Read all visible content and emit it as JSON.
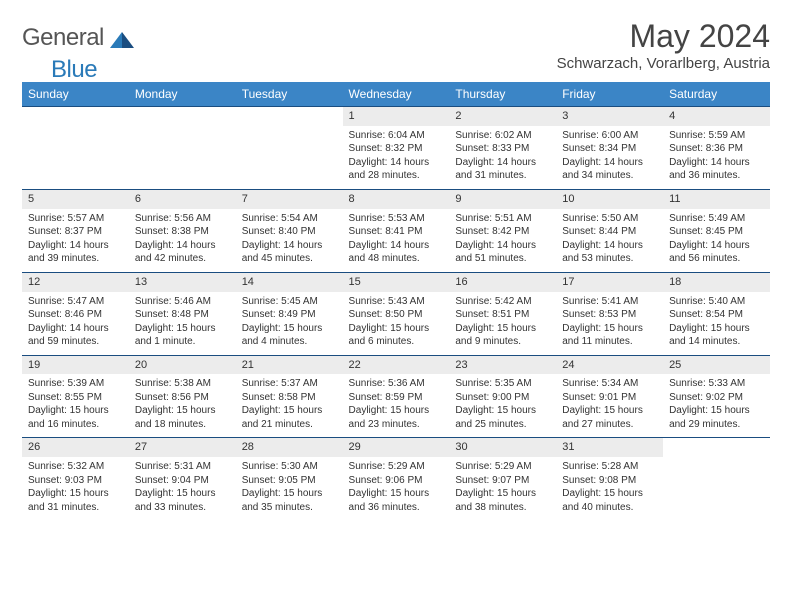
{
  "logo": {
    "general": "General",
    "blue": "Blue"
  },
  "title": "May 2024",
  "location": "Schwarzach, Vorarlberg, Austria",
  "colors": {
    "header_bg": "#3b85c6",
    "daynum_bg": "#ececec",
    "rule": "#1a4d80",
    "logo_blue": "#2a7ab8"
  },
  "weekdays": [
    "Sunday",
    "Monday",
    "Tuesday",
    "Wednesday",
    "Thursday",
    "Friday",
    "Saturday"
  ],
  "weeks": [
    {
      "nums": [
        "",
        "",
        "",
        "1",
        "2",
        "3",
        "4"
      ],
      "details": [
        {
          "sunrise": "",
          "sunset": "",
          "daylight": ""
        },
        {
          "sunrise": "",
          "sunset": "",
          "daylight": ""
        },
        {
          "sunrise": "",
          "sunset": "",
          "daylight": ""
        },
        {
          "sunrise": "Sunrise: 6:04 AM",
          "sunset": "Sunset: 8:32 PM",
          "daylight": "Daylight: 14 hours and 28 minutes."
        },
        {
          "sunrise": "Sunrise: 6:02 AM",
          "sunset": "Sunset: 8:33 PM",
          "daylight": "Daylight: 14 hours and 31 minutes."
        },
        {
          "sunrise": "Sunrise: 6:00 AM",
          "sunset": "Sunset: 8:34 PM",
          "daylight": "Daylight: 14 hours and 34 minutes."
        },
        {
          "sunrise": "Sunrise: 5:59 AM",
          "sunset": "Sunset: 8:36 PM",
          "daylight": "Daylight: 14 hours and 36 minutes."
        }
      ]
    },
    {
      "nums": [
        "5",
        "6",
        "7",
        "8",
        "9",
        "10",
        "11"
      ],
      "details": [
        {
          "sunrise": "Sunrise: 5:57 AM",
          "sunset": "Sunset: 8:37 PM",
          "daylight": "Daylight: 14 hours and 39 minutes."
        },
        {
          "sunrise": "Sunrise: 5:56 AM",
          "sunset": "Sunset: 8:38 PM",
          "daylight": "Daylight: 14 hours and 42 minutes."
        },
        {
          "sunrise": "Sunrise: 5:54 AM",
          "sunset": "Sunset: 8:40 PM",
          "daylight": "Daylight: 14 hours and 45 minutes."
        },
        {
          "sunrise": "Sunrise: 5:53 AM",
          "sunset": "Sunset: 8:41 PM",
          "daylight": "Daylight: 14 hours and 48 minutes."
        },
        {
          "sunrise": "Sunrise: 5:51 AM",
          "sunset": "Sunset: 8:42 PM",
          "daylight": "Daylight: 14 hours and 51 minutes."
        },
        {
          "sunrise": "Sunrise: 5:50 AM",
          "sunset": "Sunset: 8:44 PM",
          "daylight": "Daylight: 14 hours and 53 minutes."
        },
        {
          "sunrise": "Sunrise: 5:49 AM",
          "sunset": "Sunset: 8:45 PM",
          "daylight": "Daylight: 14 hours and 56 minutes."
        }
      ]
    },
    {
      "nums": [
        "12",
        "13",
        "14",
        "15",
        "16",
        "17",
        "18"
      ],
      "details": [
        {
          "sunrise": "Sunrise: 5:47 AM",
          "sunset": "Sunset: 8:46 PM",
          "daylight": "Daylight: 14 hours and 59 minutes."
        },
        {
          "sunrise": "Sunrise: 5:46 AM",
          "sunset": "Sunset: 8:48 PM",
          "daylight": "Daylight: 15 hours and 1 minute."
        },
        {
          "sunrise": "Sunrise: 5:45 AM",
          "sunset": "Sunset: 8:49 PM",
          "daylight": "Daylight: 15 hours and 4 minutes."
        },
        {
          "sunrise": "Sunrise: 5:43 AM",
          "sunset": "Sunset: 8:50 PM",
          "daylight": "Daylight: 15 hours and 6 minutes."
        },
        {
          "sunrise": "Sunrise: 5:42 AM",
          "sunset": "Sunset: 8:51 PM",
          "daylight": "Daylight: 15 hours and 9 minutes."
        },
        {
          "sunrise": "Sunrise: 5:41 AM",
          "sunset": "Sunset: 8:53 PM",
          "daylight": "Daylight: 15 hours and 11 minutes."
        },
        {
          "sunrise": "Sunrise: 5:40 AM",
          "sunset": "Sunset: 8:54 PM",
          "daylight": "Daylight: 15 hours and 14 minutes."
        }
      ]
    },
    {
      "nums": [
        "19",
        "20",
        "21",
        "22",
        "23",
        "24",
        "25"
      ],
      "details": [
        {
          "sunrise": "Sunrise: 5:39 AM",
          "sunset": "Sunset: 8:55 PM",
          "daylight": "Daylight: 15 hours and 16 minutes."
        },
        {
          "sunrise": "Sunrise: 5:38 AM",
          "sunset": "Sunset: 8:56 PM",
          "daylight": "Daylight: 15 hours and 18 minutes."
        },
        {
          "sunrise": "Sunrise: 5:37 AM",
          "sunset": "Sunset: 8:58 PM",
          "daylight": "Daylight: 15 hours and 21 minutes."
        },
        {
          "sunrise": "Sunrise: 5:36 AM",
          "sunset": "Sunset: 8:59 PM",
          "daylight": "Daylight: 15 hours and 23 minutes."
        },
        {
          "sunrise": "Sunrise: 5:35 AM",
          "sunset": "Sunset: 9:00 PM",
          "daylight": "Daylight: 15 hours and 25 minutes."
        },
        {
          "sunrise": "Sunrise: 5:34 AM",
          "sunset": "Sunset: 9:01 PM",
          "daylight": "Daylight: 15 hours and 27 minutes."
        },
        {
          "sunrise": "Sunrise: 5:33 AM",
          "sunset": "Sunset: 9:02 PM",
          "daylight": "Daylight: 15 hours and 29 minutes."
        }
      ]
    },
    {
      "nums": [
        "26",
        "27",
        "28",
        "29",
        "30",
        "31",
        ""
      ],
      "details": [
        {
          "sunrise": "Sunrise: 5:32 AM",
          "sunset": "Sunset: 9:03 PM",
          "daylight": "Daylight: 15 hours and 31 minutes."
        },
        {
          "sunrise": "Sunrise: 5:31 AM",
          "sunset": "Sunset: 9:04 PM",
          "daylight": "Daylight: 15 hours and 33 minutes."
        },
        {
          "sunrise": "Sunrise: 5:30 AM",
          "sunset": "Sunset: 9:05 PM",
          "daylight": "Daylight: 15 hours and 35 minutes."
        },
        {
          "sunrise": "Sunrise: 5:29 AM",
          "sunset": "Sunset: 9:06 PM",
          "daylight": "Daylight: 15 hours and 36 minutes."
        },
        {
          "sunrise": "Sunrise: 5:29 AM",
          "sunset": "Sunset: 9:07 PM",
          "daylight": "Daylight: 15 hours and 38 minutes."
        },
        {
          "sunrise": "Sunrise: 5:28 AM",
          "sunset": "Sunset: 9:08 PM",
          "daylight": "Daylight: 15 hours and 40 minutes."
        },
        {
          "sunrise": "",
          "sunset": "",
          "daylight": ""
        }
      ]
    }
  ]
}
